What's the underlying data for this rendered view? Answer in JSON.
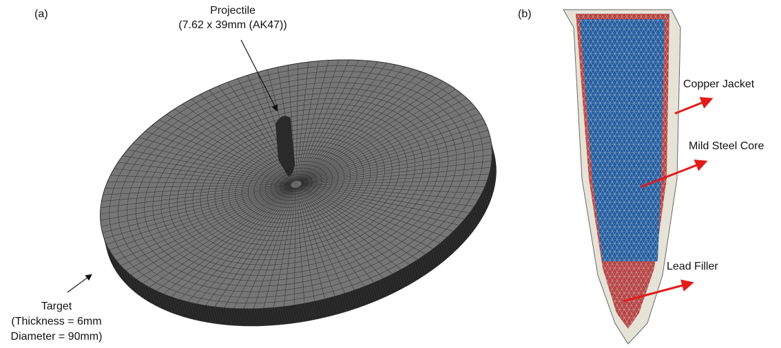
{
  "panel_a": {
    "label": "(a)",
    "projectile": {
      "title": "Projectile",
      "spec": "(7.62 x 39mm (AK47))"
    },
    "target": {
      "title": "Target",
      "thickness": "(Thickness = 6mm",
      "diameter": "Diameter = 90mm)"
    }
  },
  "panel_b": {
    "label": "(b)",
    "callouts": [
      "Copper Jacket",
      "Mild Steel Core",
      "Lead Filler"
    ]
  }
}
